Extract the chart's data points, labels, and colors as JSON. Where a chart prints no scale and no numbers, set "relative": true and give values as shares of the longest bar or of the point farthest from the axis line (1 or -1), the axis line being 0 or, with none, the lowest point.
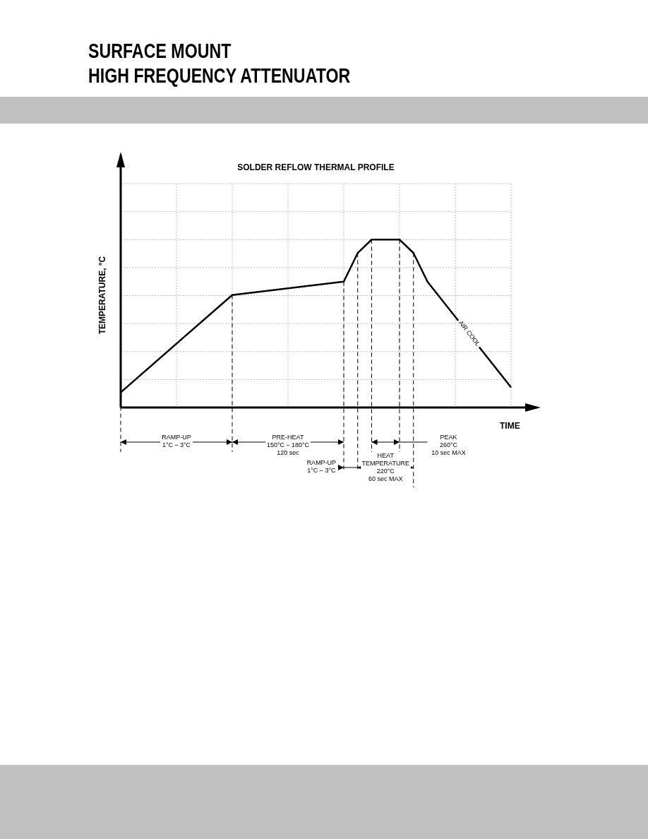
{
  "chart_data": {
    "type": "line",
    "title": "SOLDER REFLOW THERMAL PROFILE",
    "xlabel": "TIME",
    "ylabel": "TEMPERATURE, °C",
    "relative": true,
    "categories": [
      null,
      null,
      null,
      null,
      null,
      null,
      null,
      null,
      null,
      null,
      null,
      null,
      null,
      null,
      null,
      null,
      null,
      null,
      null,
      null,
      null,
      null,
      null,
      null,
      null,
      null,
      null,
      null,
      null
    ],
    "grid": true,
    "marker": "none",
    "line_style": "solid",
    "series": [
      {
        "color": "#000000",
        "values": [
          0.09,
          null,
          null,
          null,
          null,
          null,
          null,
          null,
          0.67,
          null,
          null,
          null,
          null,
          null,
          null,
          null,
          0.75,
          0.92,
          1,
          null,
          1,
          0.92,
          0.75,
          null,
          null,
          null,
          null,
          null,
          0.12
        ]
      }
    ],
    "annotations": [
      "SURFACE MOUNT",
      "HIGH FREQUENCY ATTENUATOR",
      "RAMP-UP\n1°C – 3°C",
      "PRE-HEAT\n150°C – 180°C\n120 sec",
      "RAMP-UP\n1°C – 3°C",
      "HEAT\nTEMPERATURE\n220°C\n60 sec MAX",
      "PEAK\n260°C\n10 sec MAX",
      "AIR COOL"
    ]
  }
}
